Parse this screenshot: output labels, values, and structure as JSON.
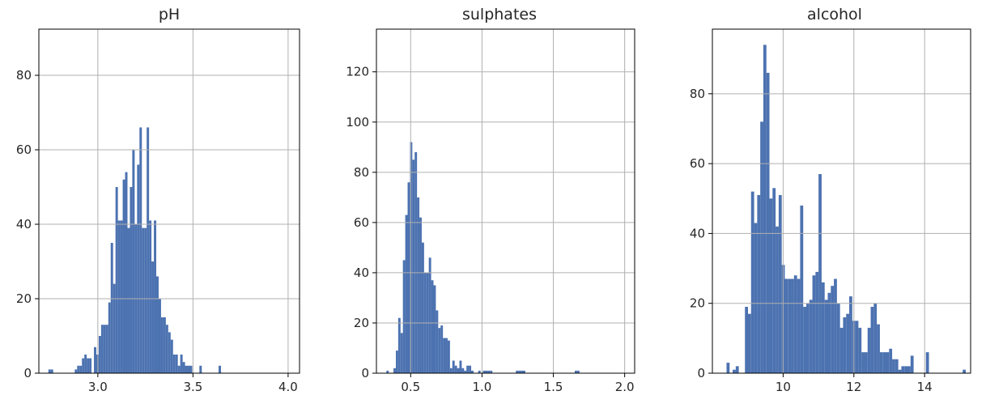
{
  "style": {
    "bar_color": "#4c72b0",
    "grid": true
  },
  "chart_data": [
    {
      "type": "bar",
      "title": "pH",
      "xlim": [
        2.69,
        4.06
      ],
      "ylim": [
        0,
        92.4
      ],
      "xticks": [
        3.0,
        3.5,
        4.0
      ],
      "xtick_labels": [
        "3.0",
        "3.5",
        "4.0"
      ],
      "yticks": [
        0,
        20,
        40,
        60,
        80
      ],
      "ytick_labels": [
        "0",
        "20",
        "40",
        "60",
        "80"
      ],
      "bin_start": 2.74,
      "bin_width": 0.0126,
      "counts": [
        1,
        1,
        0,
        0,
        0,
        0,
        0,
        0,
        0,
        0,
        0,
        1,
        2,
        2,
        4,
        5,
        4,
        4,
        0,
        7,
        5,
        10,
        13,
        13,
        13,
        19,
        35,
        24,
        50,
        41,
        41,
        52,
        54,
        39,
        50,
        60,
        40,
        56,
        66,
        39,
        39,
        66,
        41,
        30,
        41,
        26,
        20,
        15,
        15,
        13,
        11,
        9,
        5,
        5,
        2,
        5,
        3,
        2,
        2,
        2,
        0,
        0,
        0,
        2,
        0,
        0,
        0,
        0,
        0,
        0,
        0,
        2
      ]
    },
    {
      "type": "bar",
      "title": "sulphates",
      "xlim": [
        0.26,
        2.07
      ],
      "ylim": [
        0,
        137
      ],
      "xticks": [
        0.5,
        1.0,
        1.5,
        2.0
      ],
      "xtick_labels": [
        "0.5",
        "1.0",
        "1.5",
        "2.0"
      ],
      "yticks": [
        0,
        20,
        40,
        60,
        80,
        100,
        120
      ],
      "ytick_labels": [
        "0",
        "20",
        "40",
        "60",
        "80",
        "100",
        "120"
      ],
      "bin_start": 0.33,
      "bin_width": 0.0165,
      "counts": [
        1,
        0,
        0,
        2,
        9,
        22,
        16,
        45,
        63,
        76,
        92,
        85,
        88,
        70,
        62,
        52,
        40,
        40,
        46,
        37,
        35,
        25,
        18,
        19,
        14,
        14,
        13,
        2,
        5,
        3,
        2,
        5,
        2,
        1,
        3,
        3,
        1,
        0,
        0,
        1,
        0,
        1,
        1,
        1,
        1,
        0,
        0,
        0,
        0,
        0,
        0,
        0,
        0,
        0,
        0,
        1,
        1,
        1,
        1,
        0,
        0,
        0,
        0,
        0,
        0,
        0,
        0,
        0,
        0,
        0,
        0,
        0,
        0,
        0,
        0,
        0,
        0,
        0,
        0,
        0,
        1,
        1
      ]
    },
    {
      "type": "bar",
      "title": "alcohol",
      "xlim": [
        8.0,
        15.3
      ],
      "ylim": [
        0,
        98.5
      ],
      "xticks": [
        10,
        12,
        14
      ],
      "xtick_labels": [
        "10",
        "12",
        "14"
      ],
      "yticks": [
        0,
        20,
        40,
        60,
        80
      ],
      "ytick_labels": [
        "0",
        "20",
        "40",
        "60",
        "80"
      ],
      "bin_start": 8.4,
      "bin_width": 0.0867,
      "counts": [
        3,
        0,
        1,
        2,
        0,
        0,
        19,
        17,
        52,
        43,
        51,
        72,
        94,
        86,
        50,
        53,
        42,
        51,
        31,
        27,
        27,
        27,
        28,
        27,
        48,
        19,
        20,
        21,
        28,
        29,
        57,
        26,
        21,
        23,
        25,
        27,
        20,
        13,
        16,
        17,
        22,
        15,
        15,
        13,
        6,
        6,
        13,
        19,
        20,
        14,
        6,
        6,
        6,
        7,
        4,
        4,
        1,
        2,
        2,
        2,
        5,
        0,
        0,
        0,
        0,
        6,
        0,
        0,
        0,
        0,
        0,
        0,
        0,
        0,
        0,
        0,
        0,
        1
      ]
    }
  ]
}
